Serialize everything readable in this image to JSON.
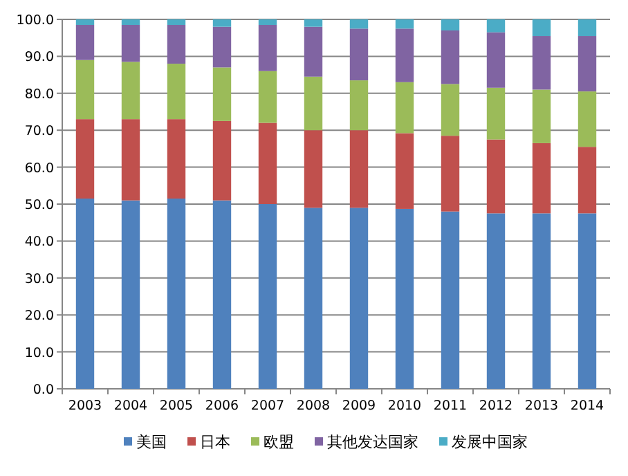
{
  "chart_data": {
    "type": "bar",
    "stacked": true,
    "categories": [
      "2003",
      "2004",
      "2005",
      "2006",
      "2007",
      "2008",
      "2009",
      "2010",
      "2011",
      "2012",
      "2013",
      "2014"
    ],
    "series": [
      {
        "name": "美国",
        "color": "#4f81bd",
        "values": [
          51.5,
          51,
          51.5,
          51,
          50,
          49,
          49,
          48.7,
          48,
          47.5,
          47.5,
          47.5
        ]
      },
      {
        "name": "日本",
        "color": "#c0504d",
        "values": [
          21.5,
          22,
          21.5,
          21.5,
          22,
          21,
          21,
          20.5,
          20.5,
          20,
          19,
          18
        ]
      },
      {
        "name": "欧盟",
        "color": "#9bbb59",
        "values": [
          16,
          15.5,
          15,
          14.5,
          14,
          14.5,
          13.5,
          13.8,
          14,
          14,
          14.5,
          15
        ]
      },
      {
        "name": "其他发达国家",
        "color": "#8064a2",
        "values": [
          9.5,
          10,
          10.5,
          11,
          12.5,
          13.5,
          14,
          14.5,
          14.5,
          15,
          14.5,
          15
        ]
      },
      {
        "name": "发展中国家",
        "color": "#4bacc6",
        "values": [
          1.5,
          1.5,
          1.5,
          2,
          1.5,
          2,
          2.5,
          2.5,
          3,
          3.5,
          4.5,
          4.5
        ]
      }
    ],
    "ylim": [
      0,
      100
    ],
    "yticks": [
      {
        "value": 0,
        "label": "0.0"
      },
      {
        "value": 10,
        "label": "10.0"
      },
      {
        "value": 20,
        "label": "20.0"
      },
      {
        "value": 30,
        "label": "30.0"
      },
      {
        "value": 40,
        "label": "40.0"
      },
      {
        "value": 50,
        "label": "50.0"
      },
      {
        "value": 60,
        "label": "60.0"
      },
      {
        "value": 70,
        "label": "70.0"
      },
      {
        "value": 80,
        "label": "80.0"
      },
      {
        "value": 90,
        "label": "90.0"
      },
      {
        "value": 100,
        "label": "100.0"
      }
    ],
    "grid": "y",
    "legend": "bottom"
  }
}
